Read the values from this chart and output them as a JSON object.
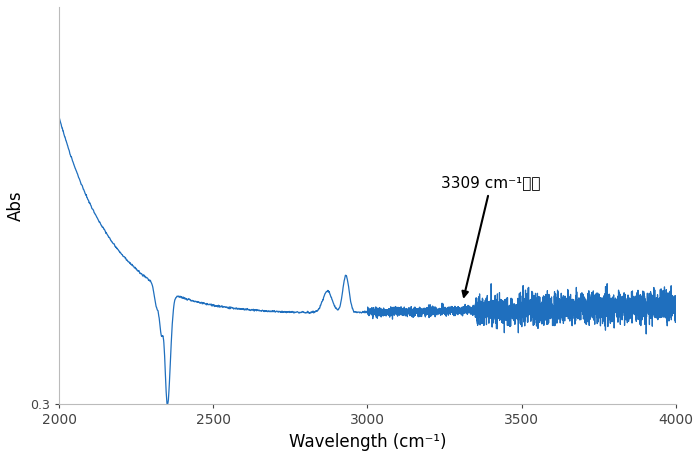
{
  "title": "",
  "xlabel": "Wavelength (cm⁻¹)",
  "ylabel": "Abs",
  "xlim": [
    2000,
    4000
  ],
  "ylim": [
    0.3,
    1.05
  ],
  "annotation_text": "3309 cm⁻¹なし",
  "line_color": "#1f6fbe",
  "background_color": "#ffffff",
  "xticks": [
    2000,
    2500,
    3000,
    3500,
    4000
  ],
  "ytick_label": "0.3",
  "font_size_label": 12,
  "font_size_annotation": 11
}
